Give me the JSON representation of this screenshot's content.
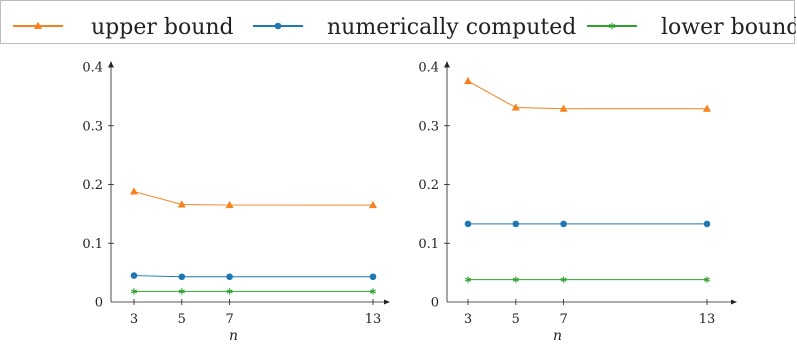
{
  "legend": [
    {
      "label": "upper bound",
      "color": "#f5821f",
      "marker": "triangle"
    },
    {
      "label": "numerically computed",
      "color": "#1f77b4",
      "marker": "circle"
    },
    {
      "label": "lower bound",
      "color": "#2ca02c",
      "marker": "star"
    }
  ],
  "chart_data": [
    {
      "type": "line",
      "x": [
        3,
        5,
        7,
        13
      ],
      "xlabel": "n",
      "ylim": [
        0,
        0.4
      ],
      "yticks": [
        0,
        0.1,
        0.2,
        0.3,
        0.4
      ],
      "ytick_labels": [
        "0",
        "0.1",
        "0.2",
        "0.3",
        "0.4"
      ],
      "grid": false,
      "series": [
        {
          "name": "upper bound",
          "values": [
            0.188,
            0.166,
            0.165,
            0.165
          ],
          "color": "#f5821f",
          "marker": "triangle"
        },
        {
          "name": "numerically computed",
          "values": [
            0.045,
            0.043,
            0.043,
            0.043
          ],
          "color": "#1f77b4",
          "marker": "circle"
        },
        {
          "name": "lower bound",
          "values": [
            0.018,
            0.018,
            0.018,
            0.018
          ],
          "color": "#2ca02c",
          "marker": "star"
        }
      ]
    },
    {
      "type": "line",
      "x": [
        3,
        5,
        7,
        13
      ],
      "xlabel": "n",
      "ylim": [
        0,
        0.4
      ],
      "yticks": [
        0,
        0.1,
        0.2,
        0.3,
        0.4
      ],
      "ytick_labels": [
        "0",
        "0.1",
        "0.2",
        "0.3",
        "0.4"
      ],
      "grid": false,
      "series": [
        {
          "name": "upper bound",
          "values": [
            0.376,
            0.331,
            0.329,
            0.329
          ],
          "color": "#f5821f",
          "marker": "triangle"
        },
        {
          "name": "numerically computed",
          "values": [
            0.133,
            0.133,
            0.133,
            0.133
          ],
          "color": "#1f77b4",
          "marker": "circle"
        },
        {
          "name": "lower bound",
          "values": [
            0.038,
            0.038,
            0.038,
            0.038
          ],
          "color": "#2ca02c",
          "marker": "star"
        }
      ]
    }
  ]
}
